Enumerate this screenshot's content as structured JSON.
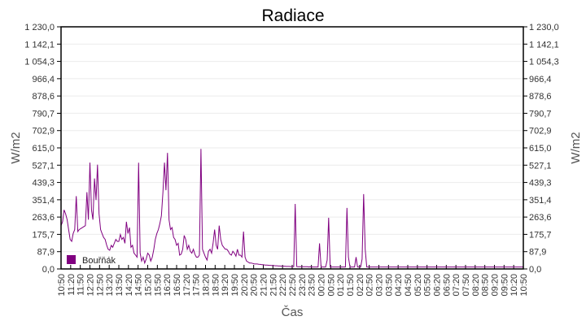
{
  "chart_data": {
    "type": "line",
    "title": "Radiace",
    "xlabel": "Čas",
    "ylabel": "W/m2",
    "ylabel_right": "W/m2",
    "ylim": [
      0,
      1230
    ],
    "grid": true,
    "legend_position": "bottom-left inside plot",
    "y_ticks": [
      "0,0",
      "87,9",
      "175,7",
      "263,6",
      "351,4",
      "439,3",
      "527,1",
      "615,0",
      "702,9",
      "790,7",
      "878,6",
      "966,4",
      "1 054,3",
      "1 142,1",
      "1 230,0"
    ],
    "x_ticks": [
      "10:50",
      "11:20",
      "11:50",
      "12:20",
      "12:50",
      "13:20",
      "13:50",
      "14:20",
      "14:50",
      "15:20",
      "15:50",
      "16:20",
      "16:50",
      "17:20",
      "17:50",
      "18:20",
      "18:50",
      "19:20",
      "19:50",
      "20:20",
      "20:50",
      "21:20",
      "21:50",
      "22:20",
      "22:50",
      "23:20",
      "23:50",
      "00:20",
      "00:50",
      "01:20",
      "01:50",
      "02:20",
      "02:50",
      "03:20",
      "03:50",
      "04:20",
      "04:50",
      "05:20",
      "05:50",
      "06:20",
      "06:50",
      "07:20",
      "07:50",
      "08:20",
      "08:50",
      "09:20",
      "09:50",
      "10:20",
      "10:50"
    ],
    "series": [
      {
        "name": "Bouřňák",
        "color": "#800080",
        "step_minutes": 5,
        "start": "10:50",
        "values": [
          220,
          240,
          300,
          280,
          250,
          200,
          150,
          140,
          180,
          200,
          370,
          190,
          200,
          205,
          210,
          215,
          220,
          390,
          250,
          540,
          300,
          250,
          460,
          350,
          530,
          280,
          200,
          180,
          160,
          150,
          120,
          100,
          95,
          120,
          110,
          130,
          150,
          140,
          140,
          175,
          150,
          160,
          130,
          240,
          180,
          210,
          110,
          120,
          80,
          70,
          60,
          540,
          80,
          40,
          60,
          30,
          50,
          80,
          70,
          40,
          60,
          100,
          150,
          180,
          200,
          230,
          270,
          390,
          540,
          400,
          590,
          250,
          200,
          210,
          160,
          150,
          120,
          130,
          70,
          75,
          100,
          170,
          150,
          100,
          120,
          90,
          80,
          100,
          75,
          60,
          60,
          70,
          610,
          100,
          80,
          60,
          45,
          90,
          100,
          80,
          130,
          200,
          120,
          100,
          220,
          150,
          120,
          110,
          100,
          100,
          90,
          75,
          70,
          90,
          80,
          65,
          100,
          70,
          70,
          60,
          190,
          60,
          40,
          35,
          30,
          30,
          28,
          26,
          25,
          25,
          24,
          23,
          22,
          22,
          20,
          20,
          19,
          18,
          18,
          17,
          17,
          16,
          16,
          15,
          15,
          14,
          14,
          14,
          13,
          13,
          13,
          12,
          12,
          12,
          330,
          12,
          11,
          11,
          11,
          11,
          11,
          11,
          11,
          10,
          11,
          10,
          10,
          10,
          10,
          10,
          130,
          10,
          10,
          10,
          10,
          45,
          260,
          10,
          10,
          10,
          10,
          10,
          10,
          10,
          10,
          10,
          10,
          10,
          310,
          60,
          10,
          10,
          10,
          10,
          60,
          10,
          10,
          10,
          50,
          380,
          100,
          10,
          10,
          10,
          10,
          10,
          10,
          10,
          10,
          10,
          10,
          10,
          10,
          10,
          10,
          10,
          10,
          10,
          10,
          10,
          10,
          10,
          10,
          10,
          10,
          10,
          10,
          10,
          10,
          10,
          10,
          10,
          10,
          10,
          10,
          10,
          10,
          10,
          10,
          10,
          10,
          10,
          10,
          10,
          10,
          10,
          10,
          10,
          10,
          10,
          10,
          10,
          10,
          10,
          10,
          10,
          10,
          10,
          10,
          10,
          10,
          10,
          10,
          10,
          10,
          10,
          10,
          10,
          10,
          10,
          10,
          10,
          10,
          10,
          10,
          10,
          10,
          10,
          10,
          10,
          10,
          10,
          10,
          10,
          10,
          10,
          10,
          10,
          10,
          10,
          10,
          10,
          10,
          10,
          10,
          10,
          10,
          10,
          10,
          10,
          10,
          10,
          10,
          10,
          10
        ]
      }
    ]
  },
  "legend": {
    "label": "Bouřňák",
    "color": "#800080"
  }
}
